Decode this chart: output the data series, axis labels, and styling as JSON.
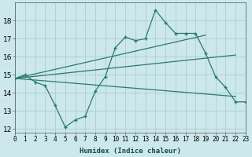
{
  "xlabel": "Humidex (Indice chaleur)",
  "x_hours": [
    0,
    1,
    2,
    3,
    4,
    5,
    6,
    7,
    8,
    9,
    10,
    11,
    12,
    13,
    14,
    15,
    16,
    17,
    18,
    19,
    20,
    21,
    22,
    23
  ],
  "data_y": [
    14.8,
    15.0,
    14.6,
    14.4,
    13.3,
    12.1,
    12.5,
    12.7,
    14.1,
    14.9,
    16.5,
    17.1,
    16.9,
    17.0,
    18.6,
    17.9,
    17.3,
    17.3,
    17.3,
    16.2,
    14.9,
    14.3,
    13.5,
    13.5
  ],
  "trend1_x": [
    0,
    19
  ],
  "trend1_y": [
    14.8,
    17.2
  ],
  "trend2_x": [
    0,
    22
  ],
  "trend2_y": [
    14.8,
    16.1
  ],
  "trend3_x": [
    0,
    22
  ],
  "trend3_y": [
    14.8,
    13.8
  ],
  "ylim": [
    11.8,
    19.0
  ],
  "xlim": [
    0,
    23
  ],
  "yticks": [
    12,
    13,
    14,
    15,
    16,
    17,
    18
  ],
  "line_color": "#2a7a6e",
  "bg_color": "#cce8ec",
  "grid_color": "#aacdd4"
}
